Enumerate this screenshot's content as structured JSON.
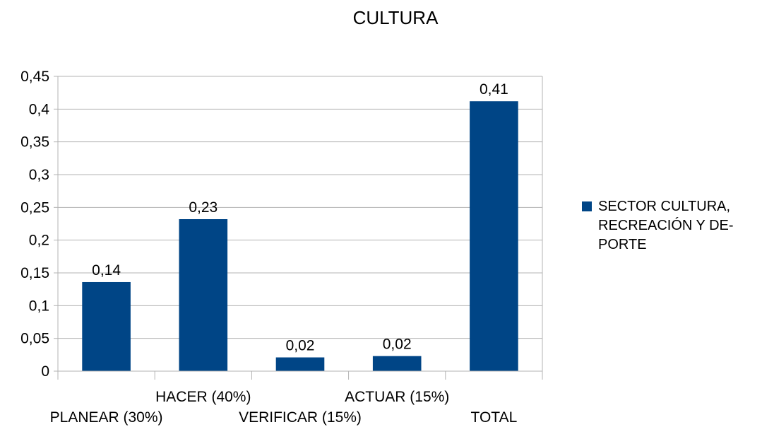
{
  "chart_data": {
    "type": "bar",
    "title": "CULTURA",
    "categories": [
      "PLANEAR (30%)",
      "HACER (40%)",
      "VERIFICAR (15%)",
      "ACTUAR (15%)",
      "TOTAL"
    ],
    "series": [
      {
        "name": "SECTOR CULTURA, RECREACIÓN Y DEPORTE",
        "name_lines": [
          "SECTOR CULTURA,",
          "RECREACIÓN Y DE-",
          "PORTE"
        ],
        "values": [
          0.136,
          0.232,
          0.021,
          0.023,
          0.412
        ],
        "data_labels": [
          "0,14",
          "0,23",
          "0,02",
          "0,02",
          "0,41"
        ],
        "color": "#004586"
      }
    ],
    "ylim": [
      0,
      0.45
    ],
    "yticks": [
      0,
      0.05,
      0.1,
      0.15,
      0.2,
      0.25,
      0.3,
      0.35,
      0.4,
      0.45
    ],
    "ytick_labels": [
      "0",
      "0,05",
      "0,1",
      "0,15",
      "0,2",
      "0,25",
      "0,3",
      "0,35",
      "0,4",
      "0,45"
    ],
    "grid": true,
    "legend_position": "right",
    "colors": {
      "bar": "#004586",
      "grid": "#b3b3b3",
      "axis": "#b3b3b3"
    }
  }
}
